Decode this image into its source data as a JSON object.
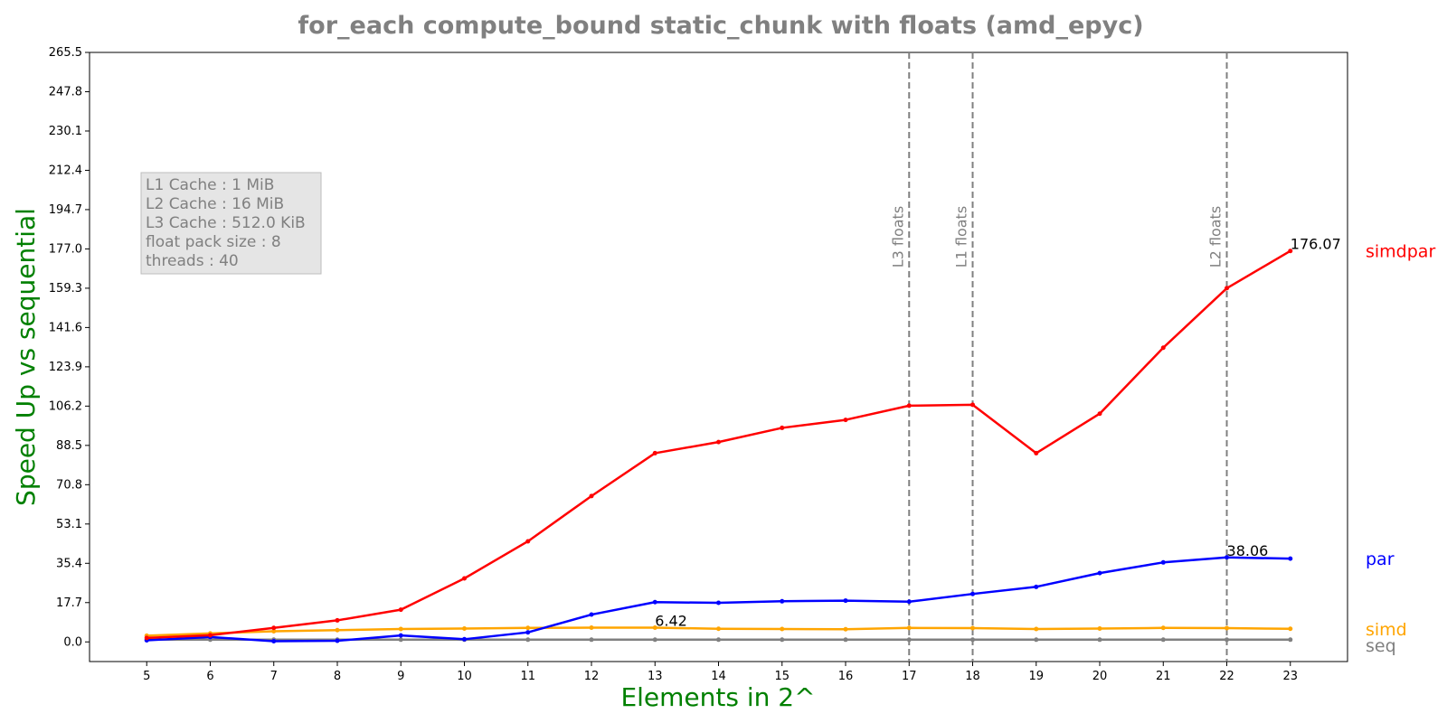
{
  "chart_data": {
    "type": "line",
    "title": "for_each compute_bound static_chunk with floats  (amd_epyc)",
    "xlabel": "Elements in 2^",
    "ylabel": "Speed Up vs sequential",
    "x": [
      5,
      6,
      7,
      8,
      9,
      10,
      11,
      12,
      13,
      14,
      15,
      16,
      17,
      18,
      19,
      20,
      21,
      22,
      23
    ],
    "xlim": [
      4.1,
      23.9
    ],
    "ylim": [
      -8.85,
      265.5
    ],
    "yticks": [
      0.0,
      17.7,
      35.4,
      53.1,
      70.8,
      88.5,
      106.2,
      123.9,
      141.6,
      159.3,
      177.0,
      194.7,
      212.4,
      230.1,
      247.8,
      265.5
    ],
    "ytick_labels": [
      "0.0",
      "17.7",
      "35.4",
      "53.1",
      "70.8",
      "88.5",
      "106.2",
      "123.9",
      "141.6",
      "159.3",
      "177.0",
      "194.7",
      "212.4",
      "230.1",
      "247.8",
      "265.5"
    ],
    "grid": false,
    "legend": "series names at right end of lines",
    "series": [
      {
        "name": "seq",
        "color": "#808080",
        "values": [
          1,
          1,
          1,
          1,
          1,
          1,
          1,
          1,
          1,
          1,
          1,
          1,
          1,
          1,
          1,
          1,
          1,
          1,
          1
        ]
      },
      {
        "name": "simd",
        "color": "#FFA500",
        "values": [
          2.8,
          3.8,
          4.8,
          5.3,
          5.8,
          6.0,
          6.3,
          6.4,
          6.42,
          5.9,
          5.8,
          5.7,
          6.3,
          6.2,
          5.8,
          6.0,
          6.3,
          6.2,
          5.9
        ]
      },
      {
        "name": "par",
        "color": "#0000FF",
        "values": [
          0.7,
          2.2,
          0.3,
          0.5,
          2.9,
          1.2,
          4.3,
          12.3,
          17.9,
          17.6,
          18.3,
          18.6,
          18.1,
          21.6,
          24.8,
          31.0,
          35.8,
          38.06,
          37.5
        ]
      },
      {
        "name": "simdpar",
        "color": "#FF0000",
        "values": [
          1.8,
          3.0,
          6.3,
          9.7,
          14.5,
          28.6,
          45.3,
          65.7,
          85.0,
          90.0,
          96.4,
          100.0,
          106.4,
          106.8,
          85.0,
          102.8,
          132.5,
          159.3,
          176.07
        ]
      }
    ],
    "annotations": [
      {
        "series": "simd",
        "x": 13,
        "text": "6.42"
      },
      {
        "series": "par",
        "x": 22,
        "text": "38.06"
      },
      {
        "series": "simdpar",
        "x": 23,
        "text": "176.07"
      }
    ],
    "vlines": [
      {
        "x": 17,
        "label": "L3 floats"
      },
      {
        "x": 18,
        "label": "L1 floats"
      },
      {
        "x": 22,
        "label": "L2 floats"
      }
    ],
    "info_box": [
      "L1 Cache : 1 MiB",
      "L2 Cache : 16 MiB",
      "L3 Cache : 512.0 KiB",
      "float pack size : 8",
      "threads : 40"
    ]
  }
}
